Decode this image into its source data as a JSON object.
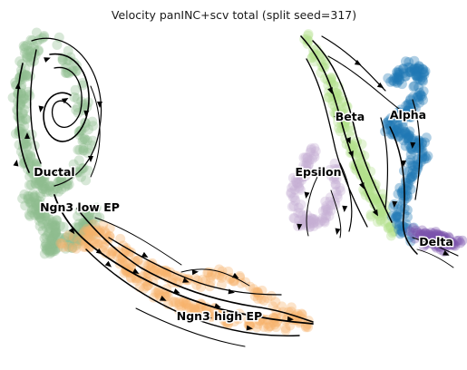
{
  "chart_data": {
    "type": "scatter",
    "title": "Velocity panINC+scv total (split seed=317)",
    "xlabel": "",
    "ylabel": "",
    "axes_visible": false,
    "grid": false,
    "overlay": "velocity streamlines with arrowheads",
    "clusters": [
      {
        "label": "Ductal",
        "color": "#8fbc8f"
      },
      {
        "label": "Ngn3 low EP",
        "color": "#8fbc8f"
      },
      {
        "label": "Ngn3 high EP",
        "color": "#f7b26b"
      },
      {
        "label": "Beta",
        "color": "#b2df8a"
      },
      {
        "label": "Alpha",
        "color": "#1f77b4"
      },
      {
        "label": "Epsilon",
        "color": "#c5b0d5"
      },
      {
        "label": "Delta",
        "color": "#7b52ab"
      }
    ]
  }
}
